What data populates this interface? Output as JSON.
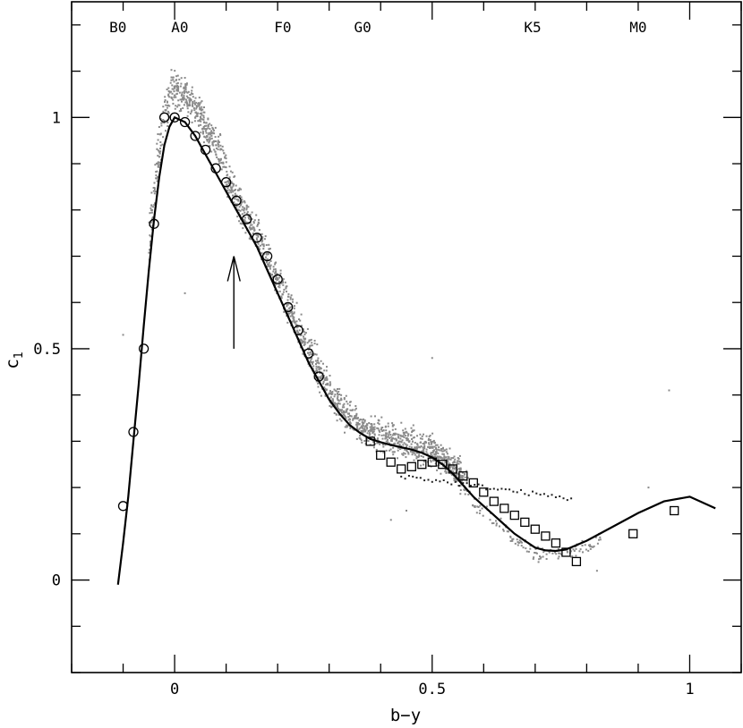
{
  "chart_data": {
    "type": "scatter",
    "xlabel": "b−y",
    "ylabel": "c",
    "ylabel_subscript": "1",
    "xlim": [
      -0.2,
      1.1
    ],
    "ylim": [
      -0.2,
      1.25
    ],
    "x_ticks": [
      0,
      0.5,
      1
    ],
    "x_tick_labels": [
      "0",
      "0.5",
      "1"
    ],
    "x_minor_step": 0.1,
    "y_ticks": [
      0,
      0.5,
      1
    ],
    "y_tick_labels": [
      "0",
      "0.5",
      "1"
    ],
    "y_minor_step": 0.1,
    "grid": false,
    "spectral_classes": [
      {
        "label": "B0",
        "x": -0.11
      },
      {
        "label": "A0",
        "x": 0.01
      },
      {
        "label": "F0",
        "x": 0.21
      },
      {
        "label": "G0",
        "x": 0.365
      },
      {
        "label": "K5",
        "x": 0.695
      },
      {
        "label": "M0",
        "x": 0.9
      }
    ],
    "curve": {
      "x": [
        -0.11,
        -0.1,
        -0.09,
        -0.08,
        -0.07,
        -0.06,
        -0.05,
        -0.04,
        -0.03,
        -0.02,
        -0.01,
        0,
        0.02,
        0.04,
        0.06,
        0.08,
        0.1,
        0.12,
        0.14,
        0.16,
        0.18,
        0.2,
        0.22,
        0.24,
        0.26,
        0.28,
        0.3,
        0.32,
        0.34,
        0.36,
        0.38,
        0.4,
        0.42,
        0.44,
        0.46,
        0.48,
        0.5,
        0.52,
        0.54,
        0.56,
        0.58,
        0.6,
        0.62,
        0.64,
        0.66,
        0.68,
        0.7,
        0.72,
        0.74,
        0.76,
        0.8,
        0.85,
        0.9,
        0.95,
        1.0,
        1.05
      ],
      "y": [
        -0.01,
        0.08,
        0.18,
        0.3,
        0.42,
        0.55,
        0.67,
        0.78,
        0.87,
        0.94,
        0.98,
        1.0,
        0.99,
        0.96,
        0.92,
        0.88,
        0.84,
        0.8,
        0.76,
        0.72,
        0.67,
        0.62,
        0.57,
        0.52,
        0.47,
        0.43,
        0.39,
        0.36,
        0.335,
        0.318,
        0.305,
        0.298,
        0.292,
        0.287,
        0.282,
        0.275,
        0.265,
        0.25,
        0.23,
        0.205,
        0.18,
        0.16,
        0.14,
        0.12,
        0.1,
        0.085,
        0.07,
        0.064,
        0.063,
        0.066,
        0.085,
        0.115,
        0.145,
        0.17,
        0.18,
        0.155
      ]
    },
    "circles": {
      "x": [
        -0.1,
        -0.08,
        -0.06,
        -0.04,
        -0.02,
        0.0,
        0.02,
        0.04,
        0.06,
        0.08,
        0.1,
        0.12,
        0.14,
        0.16,
        0.18,
        0.2,
        0.22,
        0.24,
        0.26,
        0.28
      ],
      "y": [
        0.16,
        0.32,
        0.5,
        0.77,
        1.0,
        1.0,
        0.99,
        0.96,
        0.93,
        0.89,
        0.86,
        0.82,
        0.78,
        0.74,
        0.7,
        0.65,
        0.59,
        0.54,
        0.49,
        0.44
      ]
    },
    "squares": {
      "x": [
        0.38,
        0.4,
        0.42,
        0.44,
        0.46,
        0.48,
        0.5,
        0.52,
        0.54,
        0.56,
        0.58,
        0.6,
        0.62,
        0.64,
        0.66,
        0.68,
        0.7,
        0.72,
        0.74,
        0.76,
        0.78,
        0.89,
        0.97
      ],
      "y": [
        0.3,
        0.27,
        0.255,
        0.24,
        0.245,
        0.25,
        0.255,
        0.25,
        0.24,
        0.225,
        0.21,
        0.19,
        0.17,
        0.155,
        0.14,
        0.125,
        0.11,
        0.095,
        0.08,
        0.06,
        0.04,
        0.1,
        0.15
      ]
    },
    "arrow": {
      "x": 0.115,
      "y_from": 0.5,
      "y_to": 0.7
    }
  }
}
